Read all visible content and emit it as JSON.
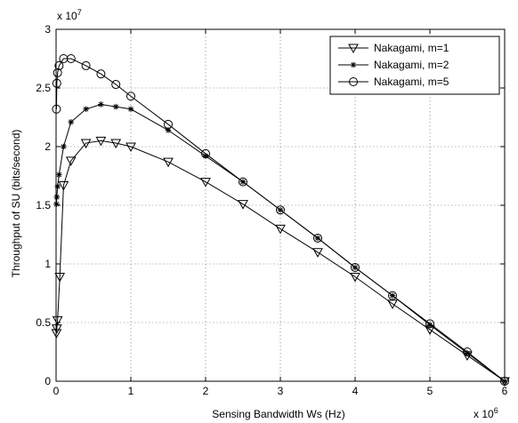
{
  "chart_data": {
    "type": "line",
    "title": "",
    "xlabel": "Sensing Bandwidth Ws (Hz)",
    "ylabel": "Throughput of SU (bits/second)",
    "x_multiplier": "x 10",
    "x_exponent": "6",
    "y_multiplier": "x 10",
    "y_exponent": "7",
    "xlim": [
      0,
      6
    ],
    "ylim": [
      0,
      3
    ],
    "xticks": [
      "0",
      "1",
      "2",
      "3",
      "4",
      "5",
      "6"
    ],
    "yticks": [
      "0",
      "0.5",
      "1",
      "1.5",
      "2",
      "2.5",
      "3"
    ],
    "grid": true,
    "legend_position": "top-right",
    "series": [
      {
        "name": "Nakagami, m=1",
        "marker": "triangle-down",
        "x": [
          0.005,
          0.01,
          0.02,
          0.05,
          0.1,
          0.2,
          0.4,
          0.6,
          0.8,
          1.0,
          1.5,
          2.0,
          2.5,
          3.0,
          3.5,
          4.0,
          4.5,
          5.0,
          5.5,
          6.0
        ],
        "y": [
          0.41,
          0.45,
          0.52,
          0.89,
          1.67,
          1.88,
          2.03,
          2.05,
          2.03,
          2.0,
          1.87,
          1.7,
          1.51,
          1.3,
          1.1,
          0.89,
          0.66,
          0.44,
          0.22,
          0.0
        ]
      },
      {
        "name": "Nakagami, m=2",
        "marker": "asterisk",
        "x": [
          0.005,
          0.01,
          0.02,
          0.04,
          0.1,
          0.2,
          0.4,
          0.6,
          0.8,
          1.0,
          1.5,
          2.0,
          2.5,
          3.0,
          3.5,
          4.0,
          4.5,
          5.0,
          5.5,
          6.0
        ],
        "y": [
          1.51,
          1.57,
          1.66,
          1.76,
          2.0,
          2.21,
          2.32,
          2.36,
          2.34,
          2.32,
          2.14,
          1.92,
          1.7,
          1.46,
          1.22,
          0.97,
          0.73,
          0.48,
          0.24,
          0.0
        ]
      },
      {
        "name": "Nakagami, m=5",
        "marker": "circle",
        "x": [
          0.005,
          0.01,
          0.02,
          0.04,
          0.1,
          0.2,
          0.4,
          0.6,
          0.8,
          1.0,
          1.5,
          2.0,
          2.5,
          3.0,
          3.5,
          4.0,
          4.5,
          5.0,
          5.5,
          6.0
        ],
        "y": [
          2.32,
          2.54,
          2.63,
          2.69,
          2.75,
          2.75,
          2.69,
          2.62,
          2.53,
          2.43,
          2.19,
          1.94,
          1.7,
          1.46,
          1.22,
          0.97,
          0.73,
          0.49,
          0.25,
          0.0
        ]
      }
    ]
  }
}
